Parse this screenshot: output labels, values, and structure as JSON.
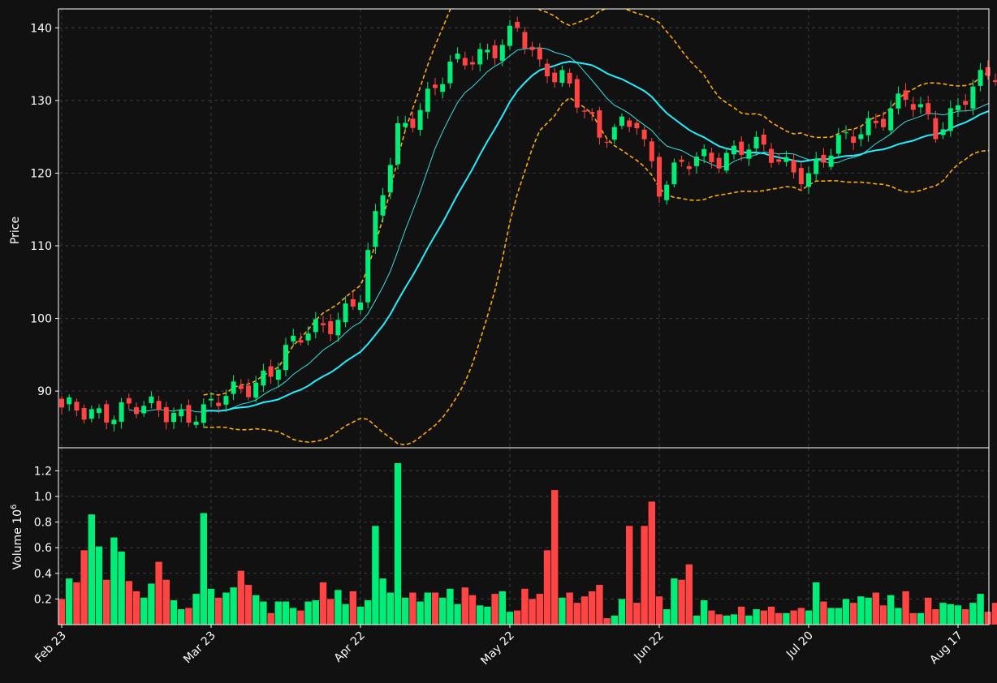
{
  "colors": {
    "background": "#111111",
    "up": "#00ee77",
    "down": "#ff4444",
    "grid": "#3a3a3a",
    "sma_short": "#33dddd",
    "sma_long": "#22eeff",
    "bollinger": "#ffaa00",
    "text": "#ffffff"
  },
  "chart_data": {
    "type": "candlestick",
    "series_names": [
      "price",
      "sma_short",
      "sma_long",
      "bollinger_upper",
      "bollinger_lower",
      "volume"
    ],
    "price_axis": {
      "label": "Price",
      "ylim": [
        82.2,
        142.6
      ],
      "ticks": [
        90,
        100,
        110,
        120,
        130,
        140
      ]
    },
    "volume_axis": {
      "label": "Volume",
      "multiplier_base": "10",
      "multiplier_exp": "6",
      "ylim": [
        0.0,
        1.38
      ],
      "ticks": [
        "0.2",
        "0.4",
        "0.6",
        "0.8",
        "1.0",
        "1.2"
      ]
    },
    "x_axis": {
      "labels": [
        "Feb 23",
        "Mar 23",
        "Apr 22",
        "May 22",
        "Jun 22",
        "Jul 20",
        "Aug 17"
      ],
      "label_index": [
        0,
        20,
        40,
        60,
        80,
        100,
        120
      ]
    },
    "grid": true,
    "close_anchors": [
      [
        0,
        87
      ],
      [
        8,
        87.5
      ],
      [
        19,
        87
      ],
      [
        22,
        89
      ],
      [
        28,
        93
      ],
      [
        33,
        98
      ],
      [
        37,
        100.5
      ],
      [
        40,
        103
      ],
      [
        42,
        113
      ],
      [
        45,
        126
      ],
      [
        52,
        134
      ],
      [
        55,
        136
      ],
      [
        61,
        139.5
      ],
      [
        64,
        134
      ],
      [
        67,
        134
      ],
      [
        70,
        129
      ],
      [
        72,
        124
      ],
      [
        77,
        128
      ],
      [
        80,
        118
      ],
      [
        85,
        122
      ],
      [
        92,
        123.5
      ],
      [
        98,
        121
      ],
      [
        100,
        120
      ],
      [
        108,
        127
      ],
      [
        113,
        130
      ],
      [
        117,
        126
      ],
      [
        121,
        131
      ],
      [
        124,
        133
      ]
    ],
    "volume_values": [
      0.2,
      0.36,
      0.33,
      0.58,
      0.86,
      0.61,
      0.35,
      0.68,
      0.57,
      0.34,
      0.26,
      0.21,
      0.32,
      0.49,
      0.35,
      0.19,
      0.12,
      0.13,
      0.24,
      0.87,
      0.28,
      0.21,
      0.25,
      0.29,
      0.42,
      0.31,
      0.23,
      0.18,
      0.09,
      0.18,
      0.18,
      0.13,
      0.11,
      0.18,
      0.19,
      0.33,
      0.2,
      0.27,
      0.16,
      0.26,
      0.14,
      0.19,
      0.77,
      0.36,
      0.25,
      1.26,
      0.21,
      0.25,
      0.18,
      0.25,
      0.25,
      0.21,
      0.28,
      0.16,
      0.29,
      0.23,
      0.15,
      0.14,
      0.24,
      0.26,
      0.1,
      0.11,
      0.28,
      0.2,
      0.24,
      0.58,
      1.05,
      0.21,
      0.25,
      0.17,
      0.22,
      0.26,
      0.31,
      0.05,
      0.07,
      0.2,
      0.77,
      0.17,
      0.77,
      0.96,
      0.22,
      0.12,
      0.36,
      0.35,
      0.47,
      0.07,
      0.19,
      0.11,
      0.08,
      0.07,
      0.08,
      0.14,
      0.07,
      0.12,
      0.11,
      0.14,
      0.09,
      0.09,
      0.11,
      0.13,
      0.11,
      0.33,
      0.18,
      0.13,
      0.13,
      0.2,
      0.17,
      0.22,
      0.21,
      0.25,
      0.15,
      0.23,
      0.13,
      0.26,
      0.09,
      0.09,
      0.21,
      0.12,
      0.17,
      0.16,
      0.15,
      0.12,
      0.17,
      0.24,
      0.1,
      0.17
    ]
  }
}
